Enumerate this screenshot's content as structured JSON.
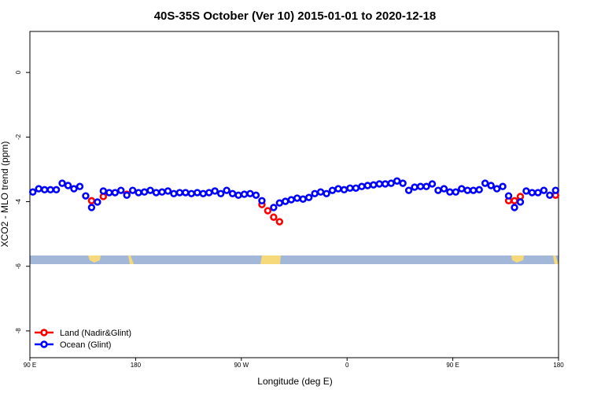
{
  "chart_data": {
    "type": "scatter",
    "title": "40S-35S October (Ver 10)   2015-01-01 to 2020-12-18",
    "x_label": "Longitude (deg E)",
    "y_label": "XCO2 - MLO trend (ppm)",
    "xlim": [
      90,
      540
    ],
    "ylim": [
      -8.83,
      1.27
    ],
    "xticks": [
      {
        "value": 90,
        "label": "90 E"
      },
      {
        "value": 180,
        "label": "180"
      },
      {
        "value": 270,
        "label": "90 W"
      },
      {
        "value": 360,
        "label": "0"
      },
      {
        "value": 450,
        "label": "90 E"
      },
      {
        "value": 540,
        "label": "180"
      }
    ],
    "yticks": [
      0,
      -2,
      -4,
      -6,
      -8
    ],
    "legend": "bottom-left",
    "series": [
      {
        "name": "Land (Nadir&Glint)",
        "color": "#ff0000",
        "x": [
          142.5,
          152.5,
          172.5,
          287.5,
          292.5,
          297.5,
          302.5,
          497.5,
          502.5,
          507.5,
          537.5
        ],
        "values": [
          -3.97,
          -3.84,
          -3.77,
          -4.09,
          -4.28,
          -4.48,
          -4.62,
          -3.97,
          -3.97,
          -3.84,
          -3.8
        ]
      },
      {
        "name": "Ocean (Glint)",
        "color": "#0000ff",
        "x": [
          92.5,
          97.5,
          102.5,
          107.5,
          112.5,
          117.5,
          122.5,
          127.5,
          132.5,
          137.5,
          142.5,
          147.5,
          152.5,
          157.5,
          162.5,
          167.5,
          172.5,
          177.5,
          182.5,
          187.5,
          192.5,
          197.5,
          202.5,
          207.5,
          212.5,
          217.5,
          222.5,
          227.5,
          232.5,
          237.5,
          242.5,
          247.5,
          252.5,
          257.5,
          262.5,
          267.5,
          272.5,
          277.5,
          282.5,
          287.5,
          292.5,
          297.5,
          302.5,
          307.5,
          312.5,
          317.5,
          322.5,
          327.5,
          332.5,
          337.5,
          342.5,
          347.5,
          352.5,
          357.5,
          362.5,
          367.5,
          372.5,
          377.5,
          382.5,
          387.5,
          392.5,
          397.5,
          402.5,
          407.5,
          412.5,
          417.5,
          422.5,
          427.5,
          432.5,
          437.5,
          442.5,
          447.5,
          452.5,
          457.5,
          462.5,
          467.5,
          472.5,
          477.5,
          482.5,
          487.5,
          492.5,
          497.5,
          502.5,
          507.5,
          512.5,
          517.5,
          522.5,
          527.5,
          532.5,
          537.5
        ],
        "values": [
          -3.7,
          -3.6,
          -3.63,
          -3.63,
          -3.63,
          -3.43,
          -3.5,
          -3.6,
          -3.53,
          -3.82,
          -4.18,
          -4.01,
          -3.67,
          -3.72,
          -3.72,
          -3.65,
          -3.8,
          -3.65,
          -3.72,
          -3.7,
          -3.65,
          -3.72,
          -3.7,
          -3.67,
          -3.75,
          -3.72,
          -3.72,
          -3.75,
          -3.72,
          -3.75,
          -3.72,
          -3.67,
          -3.75,
          -3.65,
          -3.75,
          -3.8,
          -3.77,
          -3.75,
          -3.8,
          -3.97,
          null,
          -4.18,
          -4.04,
          -3.99,
          -3.94,
          -3.89,
          -3.92,
          -3.87,
          -3.75,
          -3.7,
          -3.75,
          -3.65,
          -3.6,
          -3.63,
          -3.58,
          -3.58,
          -3.53,
          -3.5,
          -3.48,
          -3.45,
          -3.45,
          -3.43,
          -3.36,
          -3.43,
          -3.65,
          -3.55,
          -3.53,
          -3.53,
          -3.45,
          -3.65,
          -3.6,
          -3.7,
          -3.7,
          -3.6,
          -3.65,
          -3.65,
          -3.63,
          -3.43,
          -3.5,
          -3.6,
          -3.53,
          -3.82,
          -4.18,
          -4.01,
          -3.67,
          -3.72,
          -3.72,
          -3.65,
          -3.8,
          -3.65
        ]
      }
    ]
  }
}
